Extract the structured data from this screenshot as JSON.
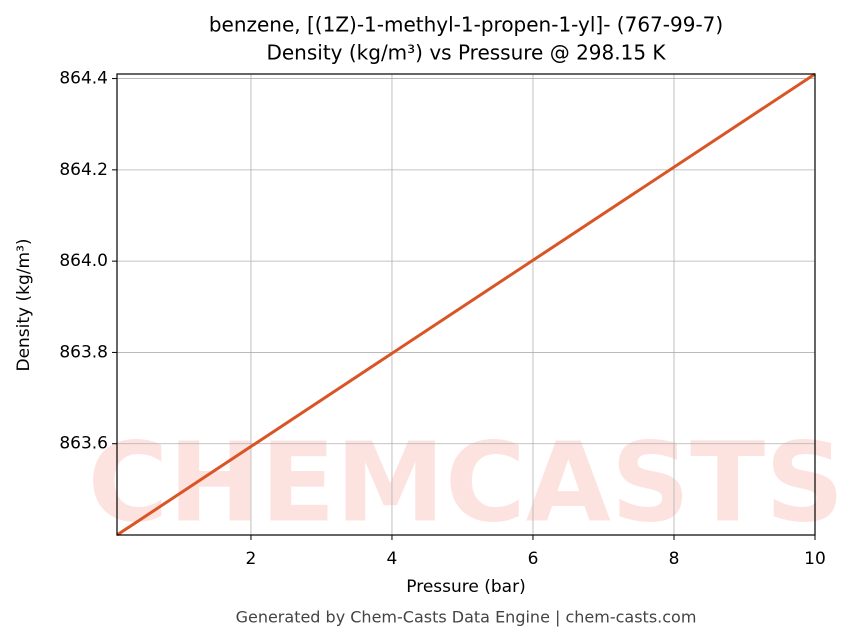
{
  "chart_data": {
    "type": "line",
    "title": "benzene, [(1Z)-1-methyl-1-propen-1-yl]- (767-99-7)",
    "subtitle": "Density (kg/m³) vs Pressure @ 298.15 K",
    "x_label": "Pressure (bar)",
    "y_label": "Density (kg/m³)",
    "footer": "Generated by Chem-Casts Data Engine | chem-casts.com",
    "watermark": "CHEMCASTS",
    "x": [
      0.1,
      10
    ],
    "series": [
      {
        "name": "Density",
        "color": "#d95525",
        "values": [
          863.4,
          864.41
        ]
      }
    ],
    "xlim": [
      0.1,
      10
    ],
    "ylim": [
      863.4,
      864.41
    ],
    "xticks": [
      2,
      4,
      6,
      8,
      10
    ],
    "yticks": [
      863.6,
      863.8,
      {
        "value": 864,
        "label": "864.0"
      },
      864.2,
      864.4
    ],
    "grid": true
  }
}
